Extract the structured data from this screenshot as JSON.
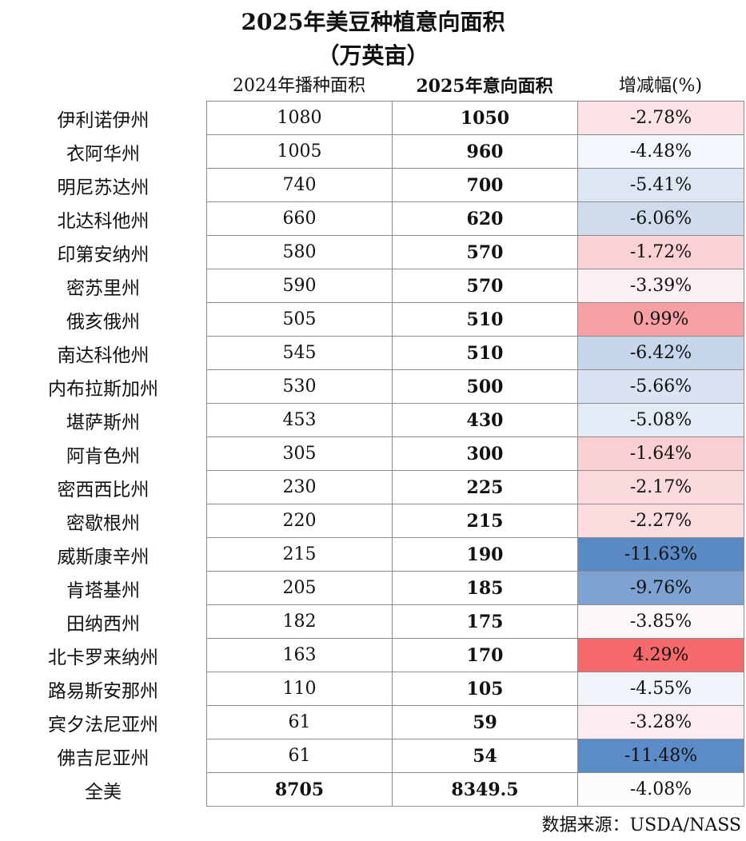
{
  "title": {
    "line1": "2025年美豆种植意向面积",
    "line2": "（万英亩）"
  },
  "headers": {
    "c1": "2024年播种面积",
    "c2": "2025年意向面积",
    "c3": "增减幅(%)"
  },
  "rows": [
    {
      "state": "伊利诺伊州",
      "y2024": "1080",
      "y2025": "1050",
      "chg": "-2.78%",
      "color": "#fce4e6"
    },
    {
      "state": "衣阿华州",
      "y2024": "1005",
      "y2025": "960",
      "chg": "-4.48%",
      "color": "#f3f6fc"
    },
    {
      "state": "明尼苏达州",
      "y2024": "740",
      "y2025": "700",
      "chg": "-5.41%",
      "color": "#dde7f3"
    },
    {
      "state": "北达科他州",
      "y2024": "660",
      "y2025": "620",
      "chg": "-6.06%",
      "color": "#cfdcee"
    },
    {
      "state": "印第安纳州",
      "y2024": "580",
      "y2025": "570",
      "chg": "-1.72%",
      "color": "#fad1d4"
    },
    {
      "state": "密苏里州",
      "y2024": "590",
      "y2025": "570",
      "chg": "-3.39%",
      "color": "#fcf0f2"
    },
    {
      "state": "俄亥俄州",
      "y2024": "505",
      "y2025": "510",
      "chg": "0.99%",
      "color": "#f8a1a4"
    },
    {
      "state": "南达科他州",
      "y2024": "545",
      "y2025": "510",
      "chg": "-6.42%",
      "color": "#c7d6eb"
    },
    {
      "state": "内布拉斯加州",
      "y2024": "530",
      "y2025": "500",
      "chg": "-5.66%",
      "color": "#d9e3f2"
    },
    {
      "state": "堪萨斯州",
      "y2024": "453",
      "y2025": "430",
      "chg": "-5.08%",
      "color": "#e3ebf6"
    },
    {
      "state": "阿肯色州",
      "y2024": "305",
      "y2025": "300",
      "chg": "-1.64%",
      "color": "#fad0d3"
    },
    {
      "state": "密西西比州",
      "y2024": "230",
      "y2025": "225",
      "chg": "-2.17%",
      "color": "#fbdadd"
    },
    {
      "state": "密歇根州",
      "y2024": "220",
      "y2025": "215",
      "chg": "-2.27%",
      "color": "#fbdcdf"
    },
    {
      "state": "威斯康辛州",
      "y2024": "215",
      "y2025": "190",
      "chg": "-11.63%",
      "color": "#5a8ac6"
    },
    {
      "state": "肯塔基州",
      "y2024": "205",
      "y2025": "185",
      "chg": "-9.76%",
      "color": "#7ea3d3"
    },
    {
      "state": "田纳西州",
      "y2024": "182",
      "y2025": "175",
      "chg": "-3.85%",
      "color": "#fcf8fb"
    },
    {
      "state": "北卡罗来纳州",
      "y2024": "163",
      "y2025": "170",
      "chg": "4.29%",
      "color": "#f8696b"
    },
    {
      "state": "路易斯安那州",
      "y2024": "110",
      "y2025": "105",
      "chg": "-4.55%",
      "color": "#f1f5fb"
    },
    {
      "state": "宾夕法尼亚州",
      "y2024": "61",
      "y2025": "59",
      "chg": "-3.28%",
      "color": "#fcedf0"
    },
    {
      "state": "佛吉尼亚州",
      "y2024": "61",
      "y2025": "54",
      "chg": "-11.48%",
      "color": "#5c8cc7"
    },
    {
      "state": "全美",
      "y2024": "8705",
      "y2025": "8349.5",
      "chg": "-4.08%",
      "color": "#fcfcff",
      "total": true
    }
  ],
  "source": "数据来源：USDA/NASS"
}
